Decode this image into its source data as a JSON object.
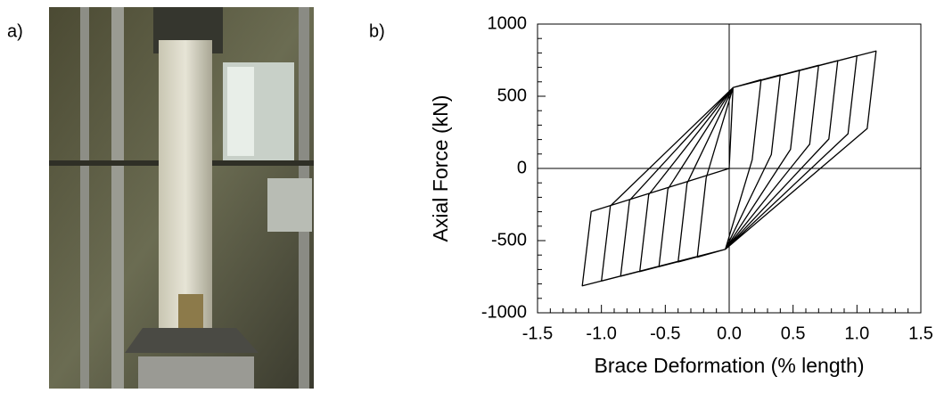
{
  "photo": {
    "label": "a)"
  },
  "chart_data": {
    "type": "line",
    "panel_label": "b)",
    "x_label": "Brace Deformation (% length)",
    "y_label": "Axial Force (kN)",
    "color": "#000000",
    "x": [
      0,
      0.03,
      0.25,
      0.18,
      -0.03,
      -0.25,
      -0.18,
      0.03,
      0.4,
      0.33,
      -0.03,
      -0.4,
      -0.33,
      0.03,
      0.55,
      0.48,
      -0.03,
      -0.55,
      -0.48,
      0.03,
      0.7,
      0.63,
      -0.03,
      -0.7,
      -0.63,
      0.03,
      0.85,
      0.78,
      -0.03,
      -0.85,
      -0.78,
      0.03,
      1.0,
      0.93,
      -0.03,
      -1.0,
      -0.93,
      0.03,
      1.15,
      1.08,
      -0.03,
      -1.15,
      -1.08,
      0
    ],
    "values": [
      0,
      560,
      615,
      60,
      -560,
      -615,
      -65,
      560,
      648,
      96,
      -560,
      -648,
      -104,
      560,
      681,
      132,
      -560,
      -681,
      -143,
      560,
      714,
      168,
      -560,
      -714,
      -182,
      560,
      747,
      204,
      -560,
      -747,
      -221,
      560,
      780,
      240,
      -560,
      -780,
      -260,
      560,
      813,
      276,
      -560,
      -813,
      -299,
      0
    ],
    "xlim": [
      -1.5,
      1.5
    ],
    "xticks": [
      -1.5,
      {
        "value": -1,
        "label": "-1.0"
      },
      -0.5,
      {
        "value": 0,
        "label": "0.0"
      },
      0.5,
      {
        "value": 1,
        "label": "1.0"
      },
      1.5
    ],
    "x_minor_ticks": [
      -1.4,
      -1.3,
      -1.2,
      -1.1,
      -0.9,
      -0.8,
      -0.7,
      -0.6,
      -0.4,
      -0.3,
      -0.2,
      -0.1,
      0.1,
      0.2,
      0.3,
      0.4,
      0.6,
      0.7,
      0.8,
      0.9,
      1.1,
      1.2,
      1.3,
      1.4
    ],
    "ylim": [
      -1000,
      1000
    ],
    "yticks": [
      -1000,
      -500,
      0,
      500,
      1000
    ],
    "y_minor_ticks": [
      -900,
      -800,
      -700,
      -600,
      -400,
      -300,
      -200,
      -100,
      100,
      200,
      300,
      400,
      600,
      700,
      800,
      900
    ],
    "zero_lines": true
  }
}
